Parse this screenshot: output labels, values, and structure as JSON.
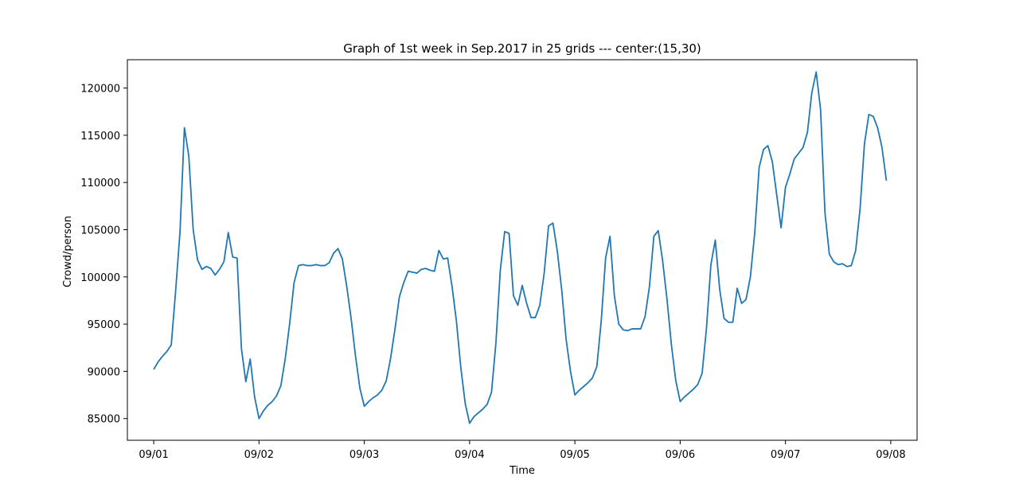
{
  "chart_data": {
    "type": "line",
    "title": "Graph of 1st week in Sep.2017 in 25 grids --- center:(15,30)",
    "xlabel": "Time",
    "ylabel": "Crowd/person",
    "x_ticks": [
      "09/01",
      "09/02",
      "09/03",
      "09/04",
      "09/05",
      "09/06",
      "09/07",
      "09/08"
    ],
    "y_ticks": [
      85000,
      90000,
      95000,
      100000,
      105000,
      110000,
      115000,
      120000
    ],
    "xlim": [
      "08/31 18:00",
      "09/08 06:00"
    ],
    "ylim": [
      82700,
      123000
    ],
    "grid": false,
    "line_color": "#1f77b4",
    "series": [
      {
        "x": [
          "09/01 00:00",
          "09/01 01:00",
          "09/01 02:00",
          "09/01 03:00",
          "09/01 04:00",
          "09/01 05:00",
          "09/01 06:00",
          "09/01 07:00",
          "09/01 08:00",
          "09/01 09:00",
          "09/01 10:00",
          "09/01 11:00",
          "09/01 12:00",
          "09/01 13:00",
          "09/01 14:00",
          "09/01 15:00",
          "09/01 16:00",
          "09/01 17:00",
          "09/01 18:00",
          "09/01 19:00",
          "09/01 20:00",
          "09/01 21:00",
          "09/01 22:00",
          "09/01 23:00",
          "09/02 00:00",
          "09/02 01:00",
          "09/02 02:00",
          "09/02 03:00",
          "09/02 04:00",
          "09/02 05:00",
          "09/02 06:00",
          "09/02 07:00",
          "09/02 08:00",
          "09/02 09:00",
          "09/02 10:00",
          "09/02 11:00",
          "09/02 12:00",
          "09/02 13:00",
          "09/02 14:00",
          "09/02 15:00",
          "09/02 16:00",
          "09/02 17:00",
          "09/02 18:00",
          "09/02 19:00",
          "09/02 20:00",
          "09/02 21:00",
          "09/02 22:00",
          "09/02 23:00",
          "09/03 00:00",
          "09/03 01:00",
          "09/03 02:00",
          "09/03 03:00",
          "09/03 04:00",
          "09/03 05:00",
          "09/03 06:00",
          "09/03 07:00",
          "09/03 08:00",
          "09/03 09:00",
          "09/03 10:00",
          "09/03 11:00",
          "09/03 12:00",
          "09/03 13:00",
          "09/03 14:00",
          "09/03 15:00",
          "09/03 16:00",
          "09/03 17:00",
          "09/03 18:00",
          "09/03 19:00",
          "09/03 20:00",
          "09/03 21:00",
          "09/03 22:00",
          "09/03 23:00",
          "09/04 00:00",
          "09/04 01:00",
          "09/04 02:00",
          "09/04 03:00",
          "09/04 04:00",
          "09/04 05:00",
          "09/04 06:00",
          "09/04 07:00",
          "09/04 08:00",
          "09/04 09:00",
          "09/04 10:00",
          "09/04 11:00",
          "09/04 12:00",
          "09/04 13:00",
          "09/04 14:00",
          "09/04 15:00",
          "09/04 16:00",
          "09/04 17:00",
          "09/04 18:00",
          "09/04 19:00",
          "09/04 20:00",
          "09/04 21:00",
          "09/04 22:00",
          "09/04 23:00",
          "09/05 00:00",
          "09/05 01:00",
          "09/05 02:00",
          "09/05 03:00",
          "09/05 04:00",
          "09/05 05:00",
          "09/05 06:00",
          "09/05 07:00",
          "09/05 08:00",
          "09/05 09:00",
          "09/05 10:00",
          "09/05 11:00",
          "09/05 12:00",
          "09/05 13:00",
          "09/05 14:00",
          "09/05 15:00",
          "09/05 16:00",
          "09/05 17:00",
          "09/05 18:00",
          "09/05 19:00",
          "09/05 20:00",
          "09/05 21:00",
          "09/05 22:00",
          "09/05 23:00",
          "09/06 00:00",
          "09/06 01:00",
          "09/06 02:00",
          "09/06 03:00",
          "09/06 04:00",
          "09/06 05:00",
          "09/06 06:00",
          "09/06 07:00",
          "09/06 08:00",
          "09/06 09:00",
          "09/06 10:00",
          "09/06 11:00",
          "09/06 12:00",
          "09/06 13:00",
          "09/06 14:00",
          "09/06 15:00",
          "09/06 16:00",
          "09/06 17:00",
          "09/06 18:00",
          "09/06 19:00",
          "09/06 20:00",
          "09/06 21:00",
          "09/06 22:00",
          "09/06 23:00",
          "09/07 00:00",
          "09/07 01:00",
          "09/07 02:00",
          "09/07 03:00",
          "09/07 04:00",
          "09/07 05:00",
          "09/07 06:00",
          "09/07 07:00",
          "09/07 08:00",
          "09/07 09:00",
          "09/07 10:00",
          "09/07 11:00",
          "09/07 12:00",
          "09/07 13:00",
          "09/07 14:00",
          "09/07 15:00",
          "09/07 16:00",
          "09/07 17:00",
          "09/07 18:00",
          "09/07 19:00",
          "09/07 20:00",
          "09/07 21:00",
          "09/07 22:00",
          "09/07 23:00"
        ],
        "values": [
          90200,
          91000,
          91600,
          92100,
          92800,
          98500,
          104800,
          115800,
          112800,
          105000,
          101800,
          100800,
          101100,
          100900,
          100200,
          100800,
          101600,
          104700,
          102100,
          102000,
          92400,
          88900,
          91300,
          87300,
          85000,
          85800,
          86400,
          86800,
          87400,
          88500,
          91400,
          95100,
          99400,
          101200,
          101300,
          101200,
          101200,
          101300,
          101200,
          101200,
          101500,
          102500,
          103000,
          101900,
          99000,
          95600,
          91600,
          88200,
          86300,
          86800,
          87200,
          87500,
          88000,
          89000,
          91400,
          94500,
          97900,
          99400,
          100600,
          100500,
          100400,
          100800,
          100900,
          100700,
          100600,
          102800,
          101900,
          102000,
          99000,
          95300,
          90400,
          86600,
          84500,
          85200,
          85600,
          86000,
          86500,
          87800,
          93000,
          100700,
          104800,
          104600,
          98000,
          97000,
          99100,
          97200,
          95700,
          95700,
          97000,
          100400,
          105400,
          105700,
          102700,
          98600,
          93400,
          90000,
          87500,
          88000,
          88400,
          88800,
          89300,
          90500,
          95300,
          102000,
          104300,
          98000,
          95000,
          94400,
          94300,
          94500,
          94500,
          94500,
          95800,
          99000,
          104300,
          104900,
          101700,
          97600,
          92800,
          89000,
          86800,
          87300,
          87700,
          88100,
          88600,
          89800,
          94600,
          101300,
          103900,
          98700,
          95600,
          95200,
          95200,
          98800,
          97200,
          97600,
          100000,
          104700,
          111600,
          113500,
          113900,
          112200,
          108700,
          105200,
          109500,
          110900,
          112500,
          113100,
          113700,
          115300,
          119500,
          121700,
          117700,
          106800,
          102400,
          101600,
          101300,
          101400,
          101100,
          101200,
          102800,
          107200,
          114100,
          117200,
          117000,
          115800,
          113700,
          110200
        ]
      }
    ]
  }
}
